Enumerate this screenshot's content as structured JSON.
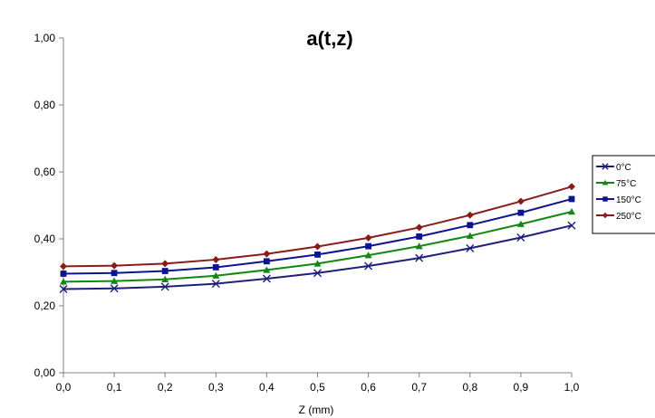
{
  "chart_data": {
    "type": "line",
    "title": "a(t,z)",
    "xlabel": "Z (mm)",
    "ylabel": "",
    "x": [
      0.0,
      0.1,
      0.2,
      0.3,
      0.4,
      0.5,
      0.6,
      0.7,
      0.8,
      0.9,
      1.0
    ],
    "x_tick_labels": [
      "0,0",
      "0,1",
      "0,2",
      "0,3",
      "0,4",
      "0,5",
      "0,6",
      "0,7",
      "0,8",
      "0,9",
      "1,0"
    ],
    "ylim": [
      0,
      1
    ],
    "y_ticks": [
      0,
      0.2,
      0.4,
      0.6,
      0.8,
      1.0
    ],
    "y_tick_labels": [
      "0,00",
      "0,20",
      "0,40",
      "0,60",
      "0,80",
      "1,00"
    ],
    "grid": false,
    "legend_position": "right",
    "series": [
      {
        "name": "0°C",
        "color": "#1f1f7a",
        "marker": "x",
        "values": [
          0.25,
          0.252,
          0.257,
          0.266,
          0.281,
          0.298,
          0.319,
          0.343,
          0.372,
          0.404,
          0.44
        ]
      },
      {
        "name": "75°C",
        "color": "#118811",
        "marker": "triangle",
        "values": [
          0.272,
          0.274,
          0.279,
          0.29,
          0.307,
          0.326,
          0.351,
          0.378,
          0.409,
          0.444,
          0.481
        ]
      },
      {
        "name": "150°C",
        "color": "#0c1490",
        "marker": "square",
        "values": [
          0.296,
          0.298,
          0.304,
          0.315,
          0.333,
          0.353,
          0.378,
          0.407,
          0.441,
          0.478,
          0.519
        ]
      },
      {
        "name": "250°C",
        "color": "#8b1a1a",
        "marker": "diamond",
        "values": [
          0.318,
          0.32,
          0.326,
          0.338,
          0.355,
          0.377,
          0.403,
          0.434,
          0.471,
          0.512,
          0.556
        ]
      }
    ]
  }
}
